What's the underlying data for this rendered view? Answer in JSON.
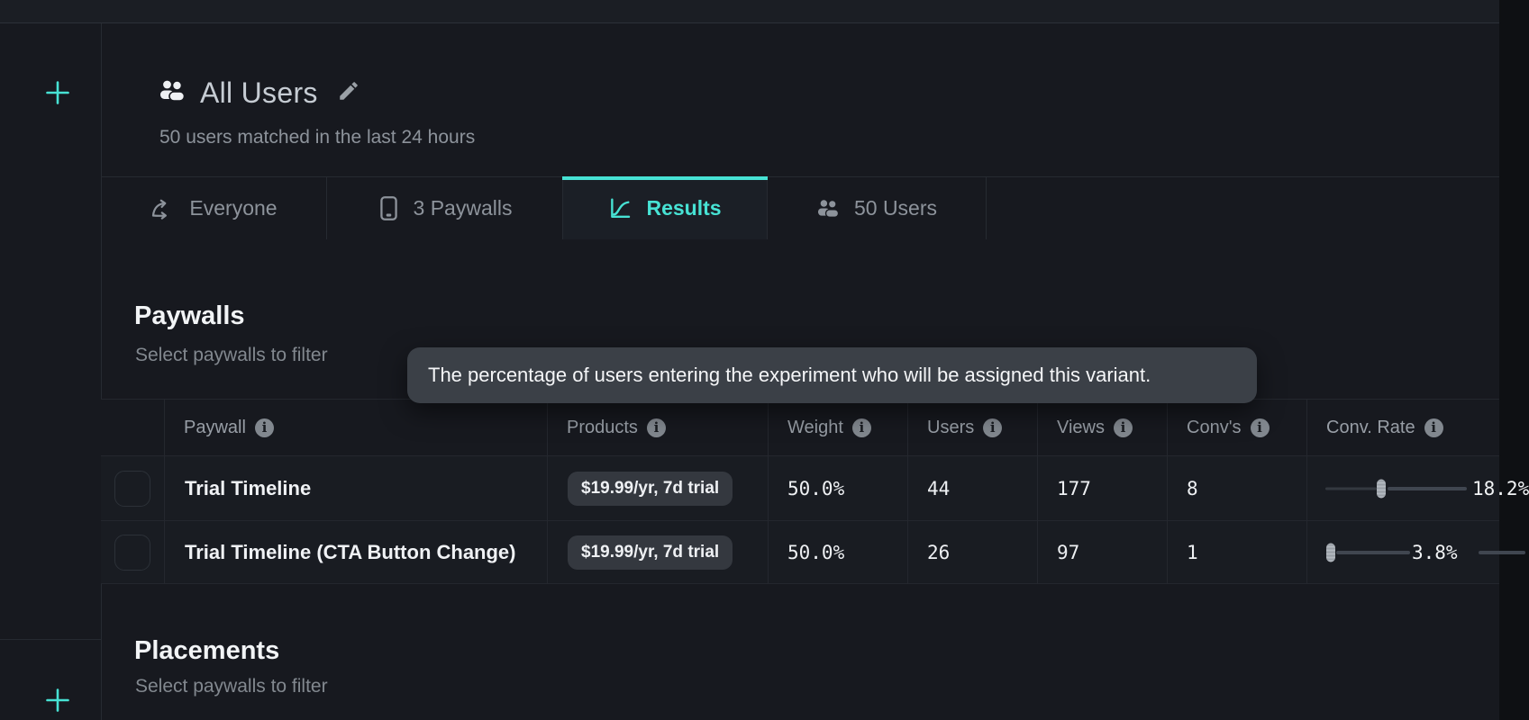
{
  "colors": {
    "accent": "#47e2d4",
    "background": "#17191f",
    "tooltip_bg": "#3b4047"
  },
  "sidebar": {
    "add_top_icon": "plus-icon",
    "add_bottom_icon": "plus-icon"
  },
  "header": {
    "icon": "users-icon",
    "title": "All Users",
    "edit_icon": "pencil-icon",
    "subtitle": "50 users matched in the last 24 hours"
  },
  "tabs": [
    {
      "id": "everyone",
      "icon": "split-arrow-icon",
      "label": "Everyone",
      "active": false
    },
    {
      "id": "paywalls",
      "icon": "phone-icon",
      "label": "3 Paywalls",
      "active": false
    },
    {
      "id": "results",
      "icon": "chart-icon",
      "label": "Results",
      "active": true
    },
    {
      "id": "users",
      "icon": "users-icon",
      "label": "50 Users",
      "active": false
    }
  ],
  "tooltip": {
    "text": "The percentage of users entering the experiment who will be assigned this variant."
  },
  "paywalls_section": {
    "title": "Paywalls",
    "subtitle": "Select paywalls to filter"
  },
  "placements_section": {
    "title": "Placements",
    "subtitle": "Select paywalls to filter"
  },
  "table": {
    "columns": [
      {
        "key": "paywall",
        "label": "Paywall",
        "info": true
      },
      {
        "key": "products",
        "label": "Products",
        "info": true
      },
      {
        "key": "weight",
        "label": "Weight",
        "info": true
      },
      {
        "key": "users",
        "label": "Users",
        "info": true
      },
      {
        "key": "views",
        "label": "Views",
        "info": true
      },
      {
        "key": "convs",
        "label": "Conv's",
        "info": true
      },
      {
        "key": "conv_rate",
        "label": "Conv. Rate",
        "info": true
      }
    ],
    "rows": [
      {
        "paywall": "Trial Timeline",
        "product_badge": "$19.99/yr, 7d trial",
        "weight": "50.0%",
        "users": "44",
        "views": "177",
        "convs": "8",
        "conv_rate": {
          "label": "18.2%",
          "variant": "mid"
        }
      },
      {
        "paywall": "Trial Timeline (CTA Button Change)",
        "product_badge": "$19.99/yr, 7d trial",
        "weight": "50.0%",
        "users": "26",
        "views": "97",
        "convs": "1",
        "conv_rate": {
          "label": "3.8%",
          "variant": "left"
        }
      }
    ]
  }
}
